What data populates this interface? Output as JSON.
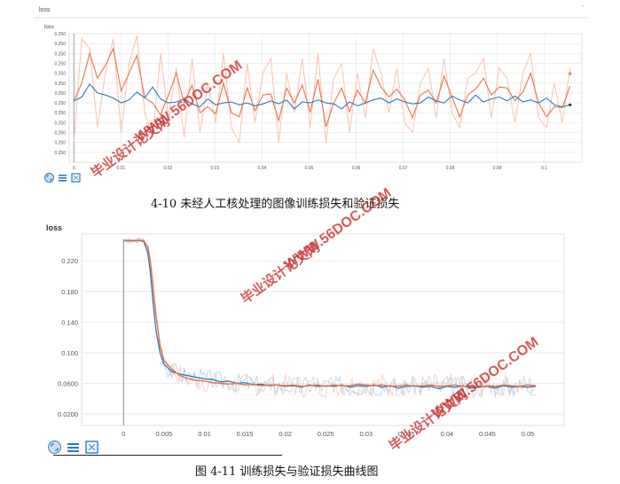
{
  "top_chart": {
    "header": "loss",
    "title": "loss",
    "chevron": "ˇ",
    "ytick_labels": [
      "0.250",
      "0.250",
      "0.250",
      "0.250",
      "0.250",
      "0.250",
      "0.250",
      "0.250",
      "0.250",
      "0.250",
      "0.250",
      "0.250",
      "0.250"
    ]
  },
  "top_caption": "4-10 未经人工核处理的图像训练损失和验证损失",
  "bottom_caption": "图 4-11 训练损失与验证损失曲线图",
  "watermarks": [
    "毕业设计论文网",
    "WWW.56DOC.COM"
  ],
  "colors": {
    "train": "#2b7bba",
    "val": "#e8744f",
    "val_light": "#f6c3ad",
    "train_light": "#a9cbe6",
    "grid": "#e6e6e6",
    "watermark": "#c62d2d"
  },
  "toolbar_icons": [
    "fit-domain-icon",
    "data-toggle-icon",
    "expand-icon"
  ],
  "chart_data": [
    {
      "type": "line",
      "title": "loss",
      "xlabel": "",
      "ylabel": "",
      "xticks": [
        0,
        0.01,
        0.02,
        0.03,
        0.04,
        0.05,
        0.06,
        0.07,
        0.08,
        0.09,
        0.1
      ],
      "xtick_labels": [
        "0",
        "0.01",
        "0.02",
        "0.03",
        "0.04",
        "0.05",
        "0.06",
        "0.07",
        "0.08",
        "0.09",
        "0.1"
      ],
      "xlim": [
        -0.001,
        0.108
      ],
      "ylim": [
        0,
        13
      ],
      "grid": true,
      "series": [
        {
          "values": [
            6.2,
            6.6,
            7.9,
            7.0,
            6.8,
            6.5,
            6.0,
            6.3,
            7.1,
            6.5,
            7.6,
            6.4,
            6.0,
            6.1,
            6.4,
            5.9,
            5.6,
            6.4,
            5.8,
            6.0,
            6.1,
            5.8,
            6.0,
            5.7,
            5.9,
            6.2,
            5.9,
            6.3,
            5.4,
            6.1,
            6.0,
            6.3,
            6.0,
            5.9,
            5.4,
            6.1,
            5.7,
            6.0,
            6.3,
            6.5,
            6.0,
            6.4,
            6.1,
            5.9,
            6.0,
            6.6,
            6.2,
            6.0,
            6.7,
            6.3,
            6.0,
            6.8,
            6.1,
            6.4,
            6.6,
            6.2,
            6.7,
            6.1,
            6.3,
            6.0,
            6.5,
            5.8,
            5.6,
            5.8
          ]
        },
        {
          "values": [
            6.2,
            8.0,
            11.0,
            8.5,
            9.8,
            11.5,
            7.2,
            9.0,
            10.8,
            6.5,
            6.0,
            4.8,
            6.8,
            9.0,
            6.0,
            7.8,
            5.0,
            5.6,
            4.9,
            8.0,
            5.0,
            4.6,
            7.5,
            5.2,
            6.8,
            6.9,
            4.2,
            7.5,
            6.0,
            7.8,
            5.1,
            8.4,
            3.6,
            6.0,
            7.5,
            5.1,
            7.3,
            6.0,
            9.3,
            7.6,
            6.6,
            7.4,
            6.3,
            4.5,
            6.8,
            7.3,
            6.0,
            8.7,
            6.6,
            4.6,
            6.8,
            7.4,
            8.5,
            6.8,
            7.6,
            7.5,
            6.2,
            7.1,
            9.0,
            6.0,
            4.6,
            5.6,
            5.5,
            7.7
          ]
        },
        {
          "values": [
            2.0,
            12.5,
            11.5,
            3.5,
            9.0,
            12.5,
            3.0,
            10.0,
            12.8,
            5.0,
            2.5,
            11.0,
            4.5,
            9.5,
            2.5,
            10.5,
            3.0,
            8.0,
            4.0,
            11.0,
            3.5,
            2.0,
            10.0,
            4.0,
            9.0,
            10.5,
            2.0,
            9.0,
            5.0,
            10.5,
            3.5,
            11.0,
            2.0,
            8.5,
            10.0,
            3.0,
            9.0,
            4.5,
            11.5,
            9.0,
            5.0,
            9.5,
            4.0,
            3.0,
            8.0,
            9.5,
            4.5,
            10.5,
            5.0,
            3.5,
            8.5,
            9.0,
            10.5,
            4.5,
            9.5,
            8.5,
            4.0,
            9.0,
            11.0,
            4.5,
            3.5,
            8.0,
            4.0,
            9.5
          ]
        }
      ]
    },
    {
      "type": "line",
      "title": "loss",
      "xlabel": "",
      "ylabel": "",
      "xticks": [
        0,
        0.005,
        0.01,
        0.015,
        0.02,
        0.025,
        0.03,
        0.035,
        0.04,
        0.045,
        0.05
      ],
      "xtick_labels": [
        "0",
        "0.005",
        "0.01",
        "0.015",
        "0.02",
        "0.025",
        "0.03",
        "0.035",
        "0.04",
        "0.045",
        "0.05"
      ],
      "yticks": [
        0.02,
        0.06,
        0.1,
        0.14,
        0.18,
        0.22
      ],
      "ytick_labels": [
        "0.0200",
        "0.0600",
        "0.100",
        "0.140",
        "0.180",
        "0.220"
      ],
      "xlim": [
        -0.0052,
        0.0545
      ],
      "ylim": [
        0.005,
        0.255
      ],
      "grid": true,
      "series": [
        {
          "x": [
            0,
            0.001,
            0.002,
            0.0025,
            0.003,
            0.0033,
            0.0036,
            0.004,
            0.0045,
            0.005,
            0.006,
            0.007,
            0.008,
            0.009,
            0.01,
            0.011,
            0.012,
            0.013,
            0.014,
            0.015,
            0.016,
            0.017,
            0.018,
            0.019,
            0.02,
            0.021,
            0.022,
            0.023,
            0.024,
            0.025,
            0.026,
            0.027,
            0.028,
            0.029,
            0.03,
            0.031,
            0.032,
            0.033,
            0.034,
            0.035,
            0.036,
            0.037,
            0.038,
            0.039,
            0.04,
            0.041,
            0.042,
            0.043,
            0.044,
            0.045,
            0.046,
            0.047,
            0.048,
            0.049,
            0.05,
            0.051
          ],
          "y": [
            0.2465,
            0.246,
            0.2465,
            0.245,
            0.23,
            0.205,
            0.17,
            0.13,
            0.1,
            0.085,
            0.075,
            0.072,
            0.07,
            0.068,
            0.066,
            0.065,
            0.062,
            0.063,
            0.06,
            0.061,
            0.058,
            0.059,
            0.057,
            0.058,
            0.056,
            0.057,
            0.055,
            0.058,
            0.056,
            0.057,
            0.056,
            0.058,
            0.055,
            0.057,
            0.056,
            0.058,
            0.055,
            0.057,
            0.054,
            0.056,
            0.057,
            0.055,
            0.056,
            0.053,
            0.056,
            0.055,
            0.057,
            0.054,
            0.055,
            0.056,
            0.054,
            0.057,
            0.055,
            0.056,
            0.055,
            0.056
          ]
        },
        {
          "x": [
            0,
            0.001,
            0.002,
            0.0025,
            0.003,
            0.0033,
            0.0036,
            0.004,
            0.0045,
            0.005,
            0.006,
            0.007,
            0.008,
            0.009,
            0.01,
            0.011,
            0.012,
            0.013,
            0.014,
            0.015,
            0.016,
            0.017,
            0.018,
            0.019,
            0.02,
            0.021,
            0.022,
            0.023,
            0.024,
            0.025,
            0.026,
            0.027,
            0.028,
            0.029,
            0.03,
            0.031,
            0.032,
            0.033,
            0.034,
            0.035,
            0.036,
            0.037,
            0.038,
            0.039,
            0.04,
            0.041,
            0.042,
            0.043,
            0.044,
            0.045,
            0.046,
            0.047,
            0.048,
            0.049,
            0.05,
            0.051
          ],
          "y": [
            0.247,
            0.2465,
            0.247,
            0.246,
            0.238,
            0.22,
            0.19,
            0.15,
            0.11,
            0.09,
            0.078,
            0.07,
            0.066,
            0.064,
            0.063,
            0.061,
            0.06,
            0.059,
            0.06,
            0.058,
            0.059,
            0.057,
            0.058,
            0.058,
            0.057,
            0.058,
            0.056,
            0.057,
            0.058,
            0.056,
            0.058,
            0.057,
            0.057,
            0.059,
            0.058,
            0.057,
            0.058,
            0.056,
            0.057,
            0.058,
            0.056,
            0.057,
            0.058,
            0.056,
            0.057,
            0.058,
            0.056,
            0.057,
            0.055,
            0.057,
            0.056,
            0.058,
            0.057,
            0.056,
            0.058,
            0.057
          ]
        }
      ]
    }
  ]
}
